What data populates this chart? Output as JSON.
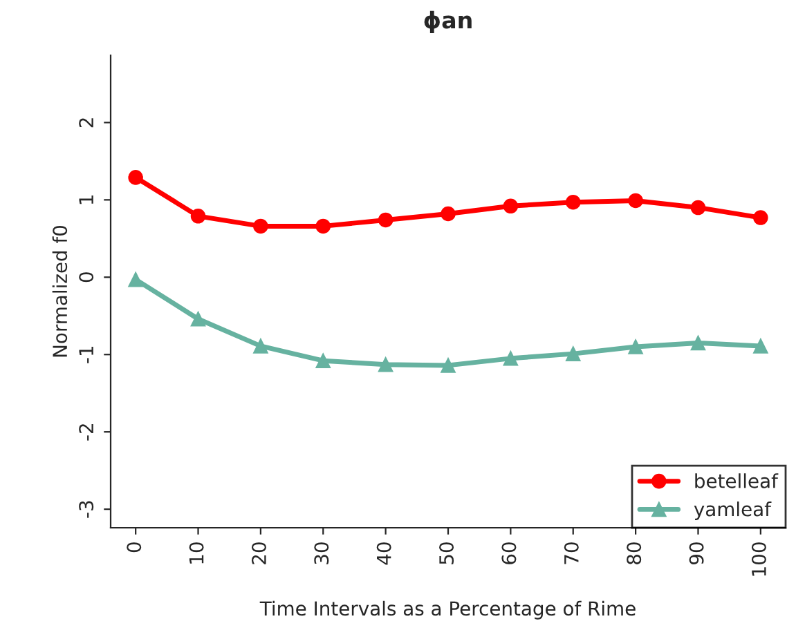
{
  "chart_data": {
    "type": "line",
    "title": "ɸan",
    "xlabel": "Time Intervals as a Percentage of Rime",
    "ylabel": "Normalized f0",
    "x": [
      0,
      10,
      20,
      30,
      40,
      50,
      60,
      70,
      80,
      90,
      100
    ],
    "series": [
      {
        "name": "betelleaf",
        "color": "#ff0000",
        "marker": "circle",
        "values": [
          1.29,
          0.79,
          0.66,
          0.66,
          0.74,
          0.82,
          0.92,
          0.97,
          0.99,
          0.9,
          0.77
        ]
      },
      {
        "name": "yamleaf",
        "color": "#66b2a0",
        "marker": "triangle",
        "values": [
          -0.03,
          -0.54,
          -0.89,
          -1.08,
          -1.13,
          -1.14,
          -1.05,
          -0.99,
          -0.9,
          -0.85,
          -0.89
        ]
      }
    ],
    "xlim": [
      -4,
      104
    ],
    "ylim": [
      -3.24,
      2.87
    ],
    "xticks": [
      0,
      10,
      20,
      30,
      40,
      50,
      60,
      70,
      80,
      90,
      100
    ],
    "yticks": [
      -3,
      -2,
      -1,
      0,
      1,
      2
    ],
    "grid": false,
    "legend": "bottom right",
    "line_style": "solid"
  }
}
